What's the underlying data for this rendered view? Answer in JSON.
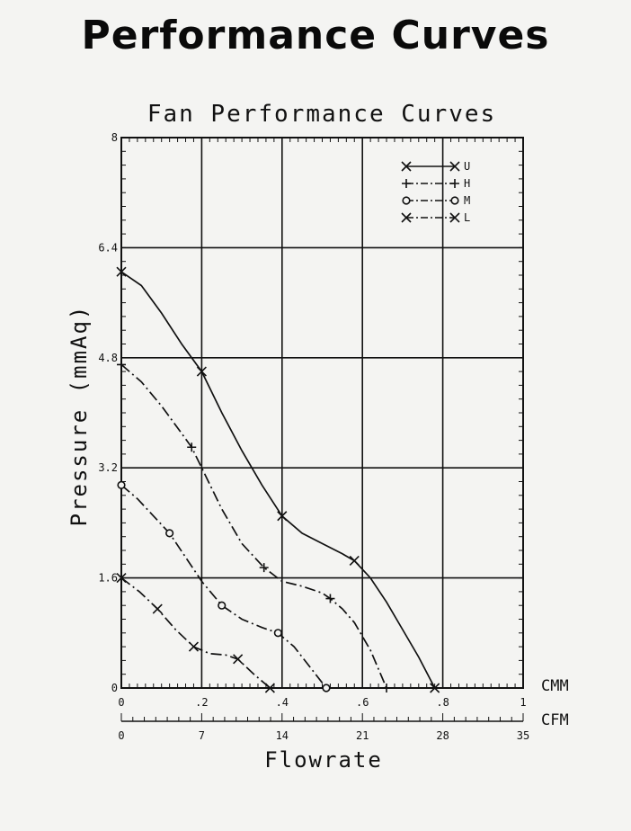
{
  "page": {
    "title": "Performance Curves"
  },
  "chart_data": {
    "type": "line",
    "title": "Fan Performance Curves",
    "ylabel": "Pressure (mmAq)",
    "xlabel": "Flowrate",
    "ylim": [
      0,
      8
    ],
    "y_ticks": [
      0,
      1.6,
      3.2,
      4.8,
      6.4,
      8
    ],
    "y_tick_labels": [
      "0",
      "1.6",
      "3.2",
      "4.8",
      "6.4",
      "8"
    ],
    "xlim_cmm": [
      0,
      1
    ],
    "x_ticks_cmm": [
      0,
      0.2,
      0.4,
      0.6,
      0.8,
      1
    ],
    "x_tick_labels_cmm": [
      "0",
      ".2",
      ".4",
      ".6",
      ".8",
      "1"
    ],
    "x_unit_cmm": "CMM",
    "x_ticks_cfm": [
      0,
      7,
      14,
      21,
      28,
      35
    ],
    "x_tick_labels_cfm": [
      "0",
      "7",
      "14",
      "21",
      "28",
      "35"
    ],
    "x_unit_cfm": "CFM",
    "legend_position": "top-right",
    "series": [
      {
        "name": "U",
        "style": "solid",
        "marker": "x",
        "x": [
          0,
          0.2,
          0.4,
          0.58,
          0.78
        ],
        "y": [
          6.05,
          4.6,
          2.5,
          1.85,
          0
        ],
        "curve": [
          [
            0,
            6.05
          ],
          [
            0.05,
            5.85
          ],
          [
            0.1,
            5.45
          ],
          [
            0.15,
            5.0
          ],
          [
            0.2,
            4.6
          ],
          [
            0.25,
            4.0
          ],
          [
            0.3,
            3.45
          ],
          [
            0.35,
            2.95
          ],
          [
            0.4,
            2.5
          ],
          [
            0.45,
            2.25
          ],
          [
            0.5,
            2.1
          ],
          [
            0.55,
            1.95
          ],
          [
            0.58,
            1.85
          ],
          [
            0.62,
            1.6
          ],
          [
            0.66,
            1.25
          ],
          [
            0.7,
            0.85
          ],
          [
            0.74,
            0.45
          ],
          [
            0.78,
            0
          ]
        ]
      },
      {
        "name": "H",
        "style": "dash-dot",
        "marker": "+",
        "x": [
          0,
          0.175,
          0.355,
          0.52,
          0.66
        ],
        "y": [
          4.7,
          3.5,
          1.75,
          1.3,
          0
        ],
        "curve": [
          [
            0,
            4.7
          ],
          [
            0.05,
            4.45
          ],
          [
            0.1,
            4.1
          ],
          [
            0.15,
            3.7
          ],
          [
            0.175,
            3.5
          ],
          [
            0.2,
            3.2
          ],
          [
            0.25,
            2.6
          ],
          [
            0.3,
            2.1
          ],
          [
            0.355,
            1.75
          ],
          [
            0.4,
            1.55
          ],
          [
            0.45,
            1.48
          ],
          [
            0.5,
            1.38
          ],
          [
            0.52,
            1.3
          ],
          [
            0.55,
            1.15
          ],
          [
            0.58,
            0.95
          ],
          [
            0.62,
            0.55
          ],
          [
            0.66,
            0
          ]
        ]
      },
      {
        "name": "M",
        "style": "dash-dot",
        "marker": "o",
        "x": [
          0,
          0.12,
          0.25,
          0.39,
          0.51
        ],
        "y": [
          2.95,
          2.25,
          1.2,
          0.8,
          0
        ],
        "curve": [
          [
            0,
            2.95
          ],
          [
            0.04,
            2.75
          ],
          [
            0.08,
            2.5
          ],
          [
            0.12,
            2.25
          ],
          [
            0.16,
            1.9
          ],
          [
            0.2,
            1.55
          ],
          [
            0.25,
            1.2
          ],
          [
            0.3,
            1.0
          ],
          [
            0.35,
            0.88
          ],
          [
            0.39,
            0.8
          ],
          [
            0.43,
            0.6
          ],
          [
            0.47,
            0.3
          ],
          [
            0.51,
            0
          ]
        ]
      },
      {
        "name": "L",
        "style": "dash-dot",
        "marker": "x",
        "x": [
          0,
          0.09,
          0.18,
          0.29,
          0.37
        ],
        "y": [
          1.6,
          1.15,
          0.6,
          0.42,
          0
        ],
        "curve": [
          [
            0,
            1.6
          ],
          [
            0.045,
            1.4
          ],
          [
            0.09,
            1.15
          ],
          [
            0.135,
            0.85
          ],
          [
            0.18,
            0.6
          ],
          [
            0.22,
            0.5
          ],
          [
            0.26,
            0.48
          ],
          [
            0.29,
            0.42
          ],
          [
            0.33,
            0.2
          ],
          [
            0.37,
            0
          ]
        ]
      }
    ]
  }
}
